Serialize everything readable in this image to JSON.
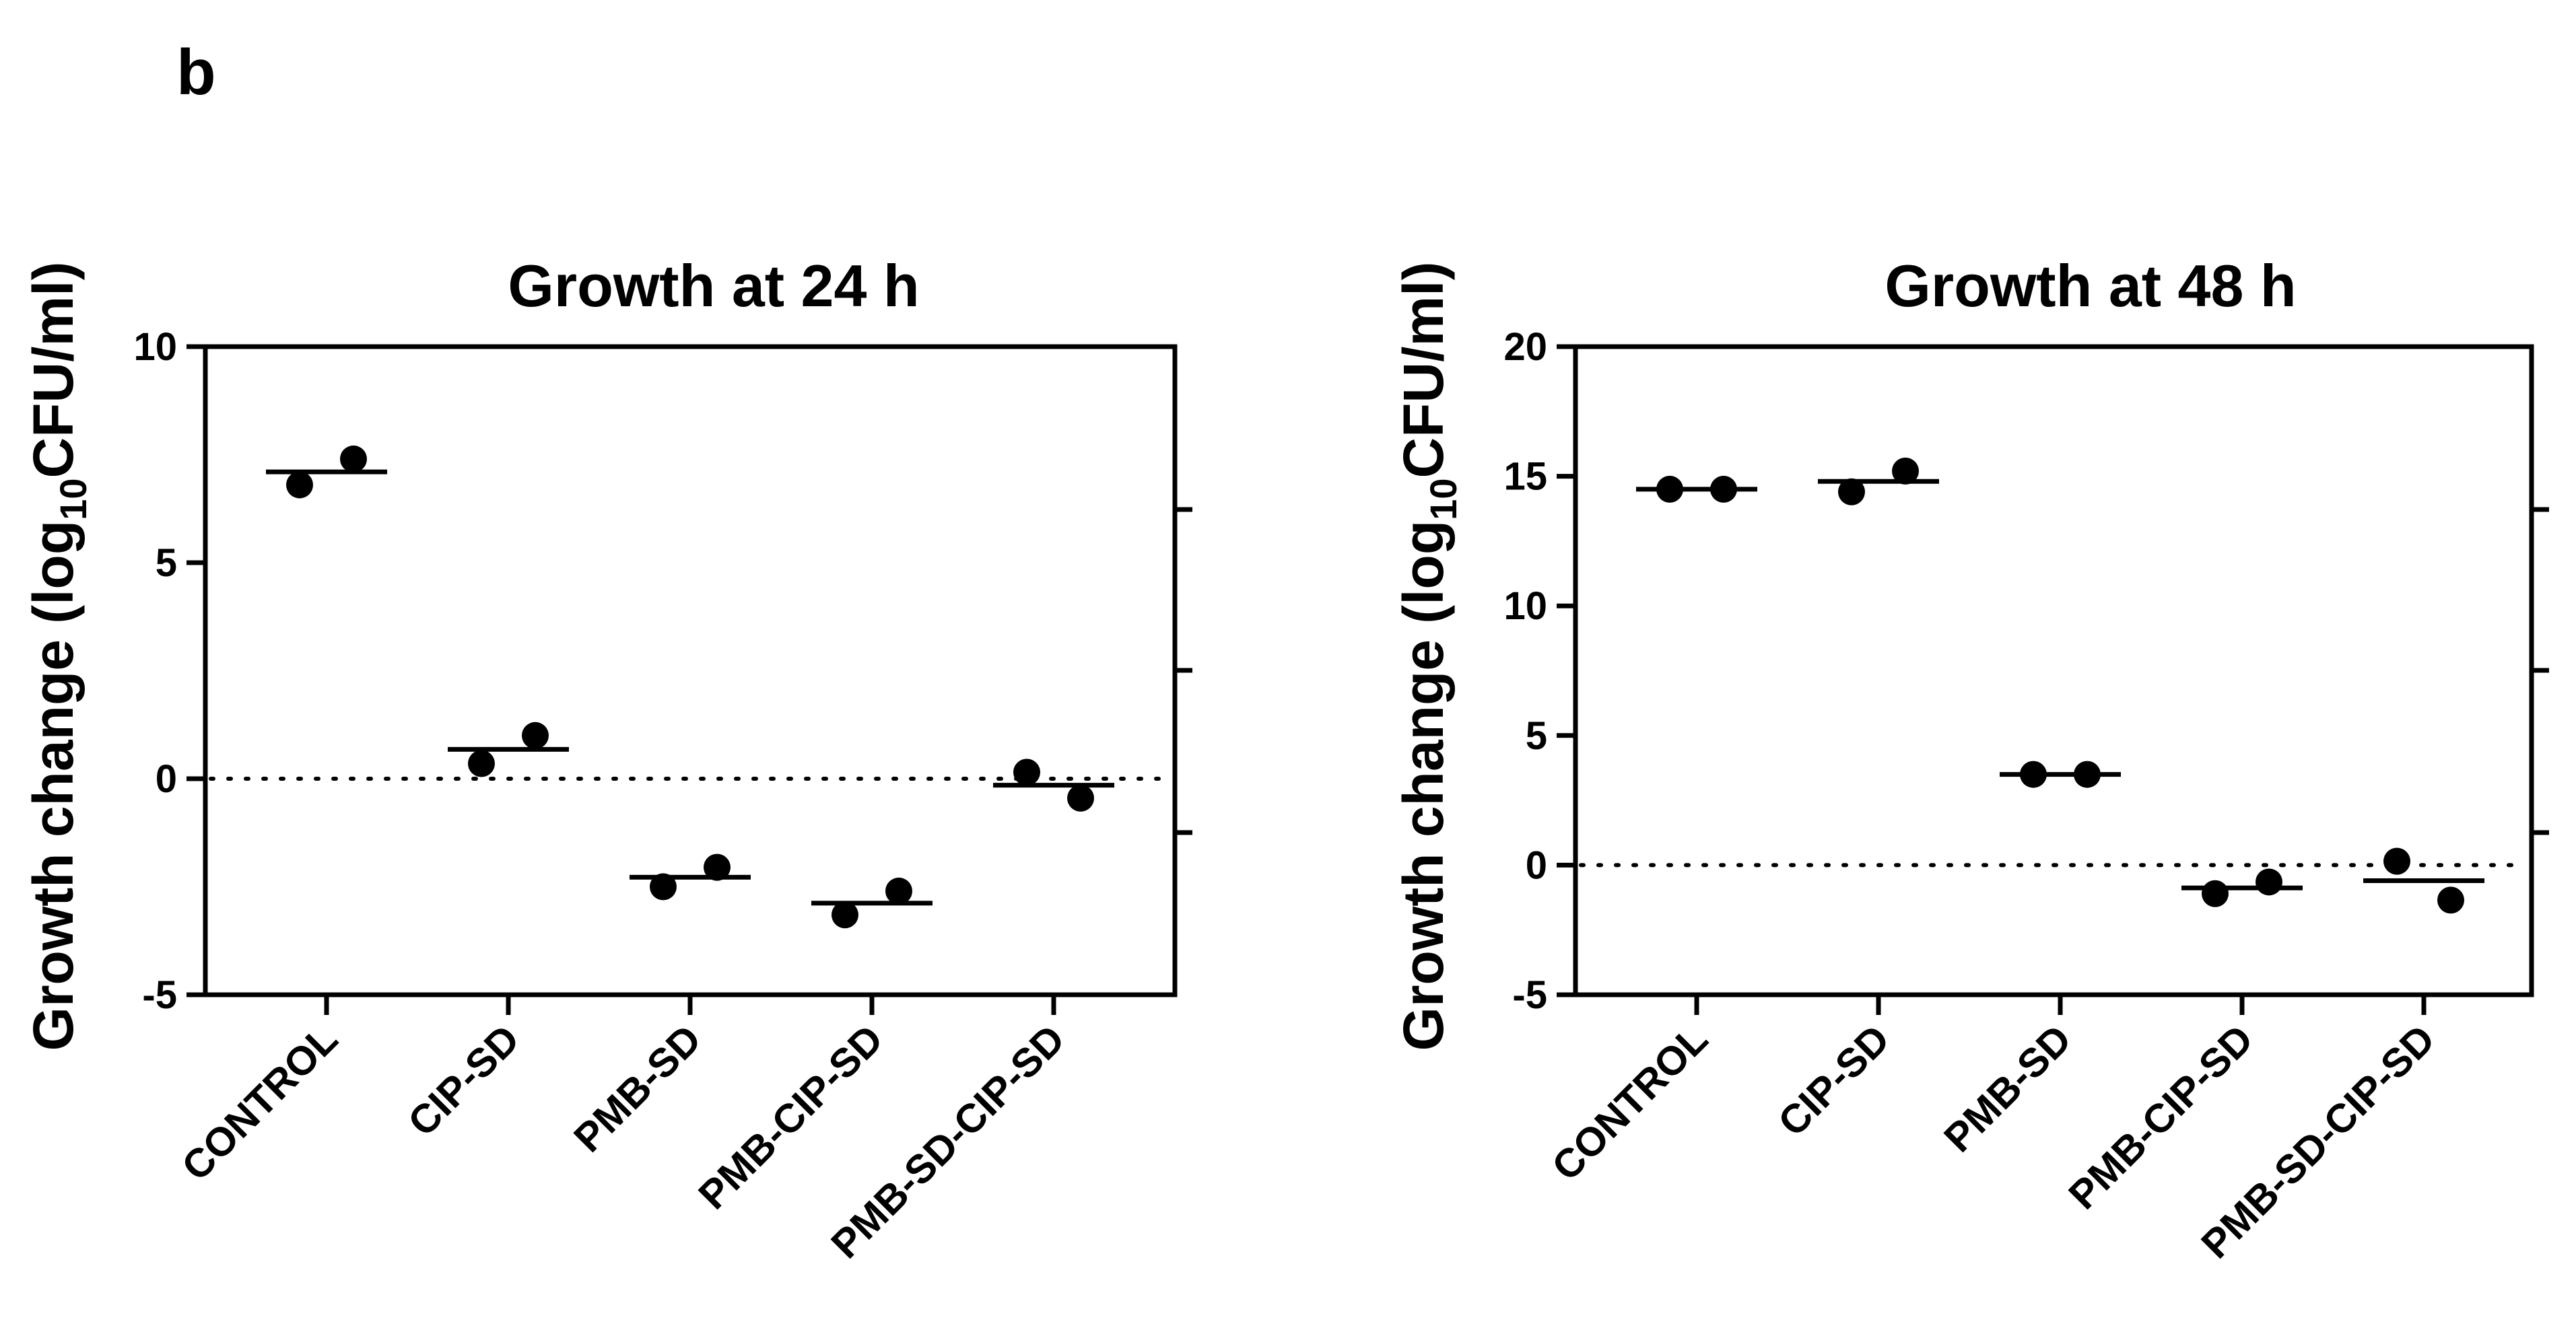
{
  "panel_label": "b",
  "colors": {
    "ink": "#000000",
    "background": "#ffffff"
  },
  "chart_data": [
    {
      "type": "scatter",
      "title": "Growth at 24 h",
      "ylabel": {
        "main": "Growth change (log",
        "subscript": "10",
        "suffix": "CFU/ml)"
      },
      "xlabel": "",
      "ylim": [
        -5,
        10
      ],
      "yticks": [
        -5,
        0,
        5,
        10
      ],
      "ytick_labels": [
        "-5",
        "0",
        "5",
        "10"
      ],
      "reference_line": 0,
      "categories": [
        "CONTROL",
        "CIP-SD",
        "PMB-SD",
        "PMB-CIP-SD",
        "PMB-SD-CIP-SD"
      ],
      "points": [
        [
          6.8,
          7.4
        ],
        [
          0.35,
          1.0
        ],
        [
          -2.5,
          -2.05
        ],
        [
          -3.15,
          -2.6
        ],
        [
          0.15,
          -0.45
        ]
      ],
      "means": [
        7.1,
        0.68,
        -2.28,
        -2.88,
        -0.15
      ]
    },
    {
      "type": "scatter",
      "title": "Growth at 48 h",
      "ylabel": {
        "main": "Growth change (log",
        "subscript": "10",
        "suffix": "CFU/ml)"
      },
      "xlabel": "",
      "ylim": [
        -5,
        20
      ],
      "yticks": [
        -5,
        0,
        5,
        10,
        15,
        20
      ],
      "ytick_labels": [
        "-5",
        "0",
        "5",
        "10",
        "15",
        "20"
      ],
      "reference_line": 0,
      "categories": [
        "CONTROL",
        "CIP-SD",
        "PMB-SD",
        "PMB-CIP-SD",
        "PMB-SD-CIP-SD"
      ],
      "points": [
        [
          14.5,
          14.5
        ],
        [
          14.4,
          15.2
        ],
        [
          3.5,
          3.5
        ],
        [
          -1.1,
          -0.65
        ],
        [
          0.15,
          -1.35
        ]
      ],
      "means": [
        14.5,
        14.8,
        3.5,
        -0.88,
        -0.6
      ]
    }
  ]
}
